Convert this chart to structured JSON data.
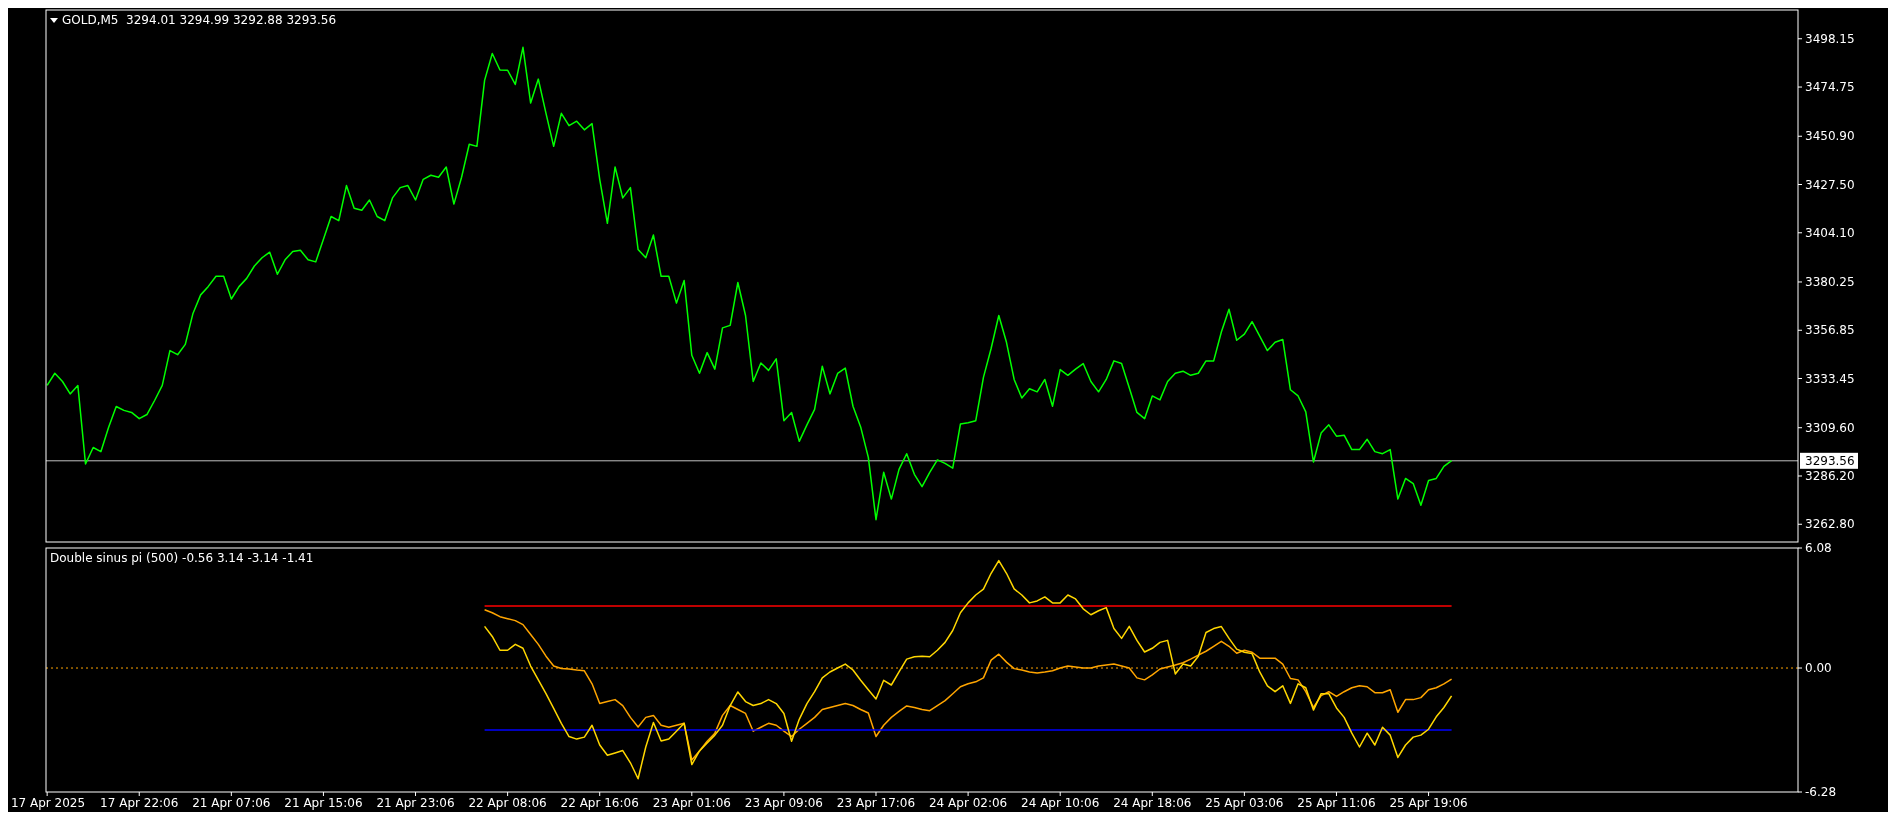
{
  "chart_data": [
    {
      "type": "line",
      "title": "GOLD,M5  3294.01 3294.99 3292.88 3293.56",
      "color": "#00ff00",
      "ylim": [
        3254.2,
        3512.1
      ],
      "categories": [
        null,
        null,
        null,
        null,
        null,
        null,
        null,
        null,
        null,
        null,
        null,
        null,
        null,
        null,
        null,
        null,
        null,
        null,
        null,
        null,
        null,
        null,
        null,
        null,
        null,
        null,
        null,
        null,
        null,
        null,
        null,
        null,
        null,
        null,
        null,
        null,
        null,
        null,
        null,
        null,
        null,
        null,
        null,
        null,
        null,
        null,
        null,
        null,
        null,
        null,
        null,
        null,
        null,
        null,
        null,
        null,
        null,
        null,
        null,
        null,
        null,
        null,
        null,
        null,
        null,
        null,
        null,
        null,
        null,
        null,
        null,
        null,
        null,
        null,
        null,
        null,
        null,
        null,
        null,
        null,
        null,
        null,
        null,
        null,
        null,
        null,
        null,
        null,
        null,
        null,
        null,
        null,
        null,
        null,
        null,
        null,
        null,
        null,
        null,
        null,
        null,
        null,
        null,
        null,
        null,
        null,
        null,
        null,
        null,
        null,
        null,
        null,
        null,
        null,
        null,
        null,
        null,
        null,
        null,
        null,
        null,
        null,
        null,
        null,
        null,
        null,
        null,
        null,
        null,
        null,
        null,
        null,
        null,
        null,
        null,
        null,
        null,
        null,
        null,
        null,
        null,
        null,
        null,
        null,
        null,
        null,
        null,
        null,
        null,
        null,
        null,
        null,
        null,
        null,
        null,
        null,
        null,
        null,
        null,
        null,
        null,
        null,
        null,
        null,
        null,
        null,
        null,
        null,
        null,
        null,
        null,
        null,
        null,
        null,
        null,
        null,
        null,
        null,
        null,
        null,
        null,
        null,
        null,
        null
      ],
      "yticks": [
        {
          "value": 3498.15,
          "label": "3498.15"
        },
        {
          "value": 3474.75,
          "label": "3474.75"
        },
        {
          "value": 3450.9,
          "label": "3450.90"
        },
        {
          "value": 3427.5,
          "label": "3427.50"
        },
        {
          "value": 3404.1,
          "label": "3404.10"
        },
        {
          "value": 3380.25,
          "label": "3380.25"
        },
        {
          "value": 3356.85,
          "label": "3356.85"
        },
        {
          "value": 3333.45,
          "label": "3333.45"
        },
        {
          "value": 3309.6,
          "label": "3309.60"
        },
        {
          "value": 3286.2,
          "label": "3286.20"
        },
        {
          "value": 3262.8,
          "label": "3262.80"
        }
      ],
      "ref_lines": [
        {
          "axis": "y",
          "value": 3293.56,
          "label": "3293.56",
          "color": "#c0c0c0"
        }
      ],
      "values": [
        3330.1,
        3336,
        3332,
        3326,
        3330.1,
        3292,
        3300,
        3298,
        3309.7,
        3319.9,
        3318,
        3317,
        3314,
        3316,
        3322.8,
        3330.1,
        3347,
        3345,
        3350,
        3365,
        3374,
        3378.1,
        3383,
        3383,
        3372,
        3378,
        3382,
        3388,
        3392,
        3394.7,
        3384,
        3391,
        3395,
        3395.6,
        3391,
        3390,
        3401,
        3412,
        3410,
        3427,
        3416,
        3415,
        3420,
        3412,
        3410,
        3421,
        3426,
        3427,
        3420,
        3430,
        3432,
        3431,
        3436,
        3418,
        3431,
        3447,
        3446,
        3478,
        3491,
        3483,
        3482.9,
        3476,
        3494,
        3467,
        3478.6,
        3462,
        3446,
        3462,
        3456,
        3458.2,
        3454,
        3457,
        3430,
        3408.7,
        3436,
        3421,
        3426,
        3396,
        3392,
        3403,
        3383,
        3383,
        3370,
        3381,
        3344.7,
        3336,
        3346,
        3338,
        3358,
        3359.2,
        3380,
        3364,
        3332,
        3341,
        3337.4,
        3343,
        3313,
        3317,
        3303,
        3311,
        3318.5,
        3339.4,
        3326,
        3335.9,
        3338.5,
        3320,
        3310,
        3295.2,
        3265,
        3288,
        3275,
        3289.4,
        3297,
        3287,
        3281,
        3288,
        3294,
        3292.3,
        3290,
        3311.4,
        3312,
        3313,
        3334,
        3348,
        3364,
        3351,
        3333,
        3324,
        3328.5,
        3327,
        3333,
        3320,
        3337.8,
        3335,
        3338,
        3340.7,
        3332,
        3327,
        3333,
        3342,
        3340.7,
        3329,
        3317,
        3314,
        3325,
        3323.1,
        3332,
        3336,
        3337,
        3335,
        3336,
        3342,
        3342,
        3356,
        3367,
        3352,
        3355,
        3361,
        3354,
        3347,
        3351,
        3352.4,
        3328,
        3325,
        3317.3,
        3293,
        3307,
        3311,
        3305.5,
        3306,
        3299,
        3299,
        3304,
        3298,
        3297,
        3299,
        3275,
        3285,
        3282.5,
        3272,
        3284,
        3285,
        3290.9,
        3293.6
      ]
    },
    {
      "type": "line",
      "title": "Double sinus pi (500) -0.56 3.14 -3.14 -1.41",
      "ylim": [
        -6.28,
        6.08
      ],
      "categories": [
        "17 Apr 2025",
        null,
        null,
        null,
        null,
        null,
        null,
        null,
        null,
        null,
        null,
        null,
        "17 Apr 22:06",
        null,
        null,
        null,
        null,
        null,
        null,
        null,
        null,
        null,
        null,
        null,
        "21 Apr 07:06",
        null,
        null,
        null,
        null,
        null,
        null,
        null,
        null,
        null,
        null,
        null,
        "21 Apr 15:06",
        null,
        null,
        null,
        null,
        null,
        null,
        null,
        null,
        null,
        null,
        null,
        "21 Apr 23:06",
        null,
        null,
        null,
        null,
        null,
        null,
        null,
        null,
        null,
        null,
        null,
        "22 Apr 08:06",
        null,
        null,
        null,
        null,
        null,
        null,
        null,
        null,
        null,
        null,
        null,
        "22 Apr 16:06",
        null,
        null,
        null,
        null,
        null,
        null,
        null,
        null,
        null,
        null,
        null,
        "23 Apr 01:06",
        null,
        null,
        null,
        null,
        null,
        null,
        null,
        null,
        null,
        null,
        null,
        "23 Apr 09:06",
        null,
        null,
        null,
        null,
        null,
        null,
        null,
        null,
        null,
        null,
        null,
        "23 Apr 17:06",
        null,
        null,
        null,
        null,
        null,
        null,
        null,
        null,
        null,
        null,
        null,
        "24 Apr 02:06",
        null,
        null,
        null,
        null,
        null,
        null,
        null,
        null,
        null,
        null,
        null,
        "24 Apr 10:06",
        null,
        null,
        null,
        null,
        null,
        null,
        null,
        null,
        null,
        null,
        null,
        "24 Apr 18:06",
        null,
        null,
        null,
        null,
        null,
        null,
        null,
        null,
        null,
        null,
        null,
        "25 Apr 03:06",
        null,
        null,
        null,
        null,
        null,
        null,
        null,
        null,
        null,
        null,
        null,
        "25 Apr 11:06",
        null,
        null,
        null,
        null,
        null,
        null,
        null,
        null,
        null,
        null,
        null,
        "25 Apr 19:06",
        null,
        null,
        null
      ],
      "yticks": [
        6.08,
        {
          "value": 0,
          "label": "0.00"
        },
        -6.28
      ],
      "ref_lines": [
        {
          "axis": "y",
          "value": 0,
          "color": "#ffa500",
          "line_style": "dotted"
        }
      ],
      "series": [
        {
          "color": "#ffa500",
          "values": [
            null,
            null,
            null,
            null,
            null,
            null,
            null,
            null,
            null,
            null,
            null,
            null,
            null,
            null,
            null,
            null,
            null,
            null,
            null,
            null,
            null,
            null,
            null,
            null,
            null,
            null,
            null,
            null,
            null,
            null,
            null,
            null,
            null,
            null,
            null,
            null,
            null,
            null,
            null,
            null,
            null,
            null,
            null,
            null,
            null,
            null,
            null,
            null,
            null,
            null,
            null,
            null,
            null,
            null,
            null,
            null,
            null,
            2.95,
            2.8,
            2.6,
            2.5,
            2.4,
            2.2,
            1.7,
            1.2,
            0.6,
            0.1,
            -0.02,
            -0.05,
            -0.1,
            -0.14,
            -0.8,
            -1.8,
            -1.7,
            -1.6,
            -1.9,
            -2.5,
            -2.99,
            -2.5,
            -2.4,
            -2.9,
            -3.0,
            -2.9,
            -2.8,
            -4.66,
            -4.2,
            -3.71,
            -3.3,
            -2.4,
            -1.9,
            -2.1,
            -2.3,
            -3.2,
            -3.0,
            -2.8,
            -2.9,
            -3.2,
            -3.47,
            -3.1,
            -2.8,
            -2.5,
            -2.1,
            -2.0,
            -1.9,
            -1.8,
            -1.9,
            -2.1,
            -2.28,
            -3.47,
            -2.9,
            -2.5,
            -2.2,
            -1.92,
            -2.0,
            -2.1,
            -2.16,
            -1.9,
            -1.65,
            -1.3,
            -0.95,
            -0.8,
            -0.7,
            -0.5,
            0.4,
            0.7,
            0.3,
            -0.03,
            -0.1,
            -0.2,
            -0.25,
            -0.2,
            -0.14,
            0,
            0.1,
            0.05,
            0,
            0,
            0.1,
            0.15,
            0.2,
            0.1,
            0,
            -0.5,
            -0.6,
            -0.35,
            -0.05,
            0.05,
            0.15,
            0.27,
            0.45,
            0.65,
            0.85,
            1.1,
            1.35,
            1.1,
            0.75,
            0.9,
            0.8,
            0.5,
            0.5,
            0.5,
            0.2,
            -0.53,
            -0.6,
            -1.2,
            -2.0,
            -1.4,
            -1.2,
            -1.44,
            -1.2,
            -1.0,
            -0.9,
            -0.95,
            -1.25,
            -1.25,
            -1.1,
            -2.24,
            -1.6,
            -1.6,
            -1.5,
            -1.1,
            -1.0,
            -0.8,
            -0.56
          ]
        },
        {
          "color": "#ff0000",
          "values": [
            null,
            null,
            null,
            null,
            null,
            null,
            null,
            null,
            null,
            null,
            null,
            null,
            null,
            null,
            null,
            null,
            null,
            null,
            null,
            null,
            null,
            null,
            null,
            null,
            null,
            null,
            null,
            null,
            null,
            null,
            null,
            null,
            null,
            null,
            null,
            null,
            null,
            null,
            null,
            null,
            null,
            null,
            null,
            null,
            null,
            null,
            null,
            null,
            null,
            null,
            null,
            null,
            null,
            null,
            null,
            null,
            null,
            3.14,
            3.14,
            3.14,
            3.14,
            3.14,
            3.14,
            3.14,
            3.14,
            3.14,
            3.14,
            3.14,
            3.14,
            3.14,
            3.14,
            3.14,
            3.14,
            3.14,
            3.14,
            3.14,
            3.14,
            3.14,
            3.14,
            3.14,
            3.14,
            3.14,
            3.14,
            3.14,
            3.14,
            3.14,
            3.14,
            3.14,
            3.14,
            3.14,
            3.14,
            3.14,
            3.14,
            3.14,
            3.14,
            3.14,
            3.14,
            3.14,
            3.14,
            3.14,
            3.14,
            3.14,
            3.14,
            3.14,
            3.14,
            3.14,
            3.14,
            3.14,
            3.14,
            3.14,
            3.14,
            3.14,
            3.14,
            3.14,
            3.14,
            3.14,
            3.14,
            3.14,
            3.14,
            3.14,
            3.14,
            3.14,
            3.14,
            3.14,
            3.14,
            3.14,
            3.14,
            3.14,
            3.14,
            3.14,
            3.14,
            3.14,
            3.14,
            3.14,
            3.14,
            3.14,
            3.14,
            3.14,
            3.14,
            3.14,
            3.14,
            3.14,
            3.14,
            3.14,
            3.14,
            3.14,
            3.14,
            3.14,
            3.14,
            3.14,
            3.14,
            3.14,
            3.14,
            3.14,
            3.14,
            3.14,
            3.14,
            3.14,
            3.14,
            3.14,
            3.14,
            3.14,
            3.14,
            3.14,
            3.14,
            3.14,
            3.14,
            3.14,
            3.14,
            3.14,
            3.14,
            3.14,
            3.14,
            3.14,
            3.14,
            3.14,
            3.14,
            3.14,
            3.14,
            3.14,
            3.14,
            3.14,
            3.14,
            3.14
          ]
        },
        {
          "color": "#0000ff",
          "values": [
            null,
            null,
            null,
            null,
            null,
            null,
            null,
            null,
            null,
            null,
            null,
            null,
            null,
            null,
            null,
            null,
            null,
            null,
            null,
            null,
            null,
            null,
            null,
            null,
            null,
            null,
            null,
            null,
            null,
            null,
            null,
            null,
            null,
            null,
            null,
            null,
            null,
            null,
            null,
            null,
            null,
            null,
            null,
            null,
            null,
            null,
            null,
            null,
            null,
            null,
            null,
            null,
            null,
            null,
            null,
            null,
            null,
            -3.14,
            -3.14,
            -3.14,
            -3.14,
            -3.14,
            -3.14,
            -3.14,
            -3.14,
            -3.14,
            -3.14,
            -3.14,
            -3.14,
            -3.14,
            -3.14,
            -3.14,
            -3.14,
            -3.14,
            -3.14,
            -3.14,
            -3.14,
            -3.14,
            -3.14,
            -3.14,
            -3.14,
            -3.14,
            -3.14,
            -3.14,
            -3.14,
            -3.14,
            -3.14,
            -3.14,
            -3.14,
            -3.14,
            -3.14,
            -3.14,
            -3.14,
            -3.14,
            -3.14,
            -3.14,
            -3.14,
            -3.14,
            -3.14,
            -3.14,
            -3.14,
            -3.14,
            -3.14,
            -3.14,
            -3.14,
            -3.14,
            -3.14,
            -3.14,
            -3.14,
            -3.14,
            -3.14,
            -3.14,
            -3.14,
            -3.14,
            -3.14,
            -3.14,
            -3.14,
            -3.14,
            -3.14,
            -3.14,
            -3.14,
            -3.14,
            -3.14,
            -3.14,
            -3.14,
            -3.14,
            -3.14,
            -3.14,
            -3.14,
            -3.14,
            -3.14,
            -3.14,
            -3.14,
            -3.14,
            -3.14,
            -3.14,
            -3.14,
            -3.14,
            -3.14,
            -3.14,
            -3.14,
            -3.14,
            -3.14,
            -3.14,
            -3.14,
            -3.14,
            -3.14,
            -3.14,
            -3.14,
            -3.14,
            -3.14,
            -3.14,
            -3.14,
            -3.14,
            -3.14,
            -3.14,
            -3.14,
            -3.14,
            -3.14,
            -3.14,
            -3.14,
            -3.14,
            -3.14,
            -3.14,
            -3.14,
            -3.14,
            -3.14,
            -3.14,
            -3.14,
            -3.14,
            -3.14,
            -3.14,
            -3.14,
            -3.14,
            -3.14,
            -3.14,
            -3.14,
            -3.14,
            -3.14,
            -3.14,
            -3.14,
            -3.14,
            -3.14,
            -3.14
          ]
        },
        {
          "color": "#ffd700",
          "values": [
            null,
            null,
            null,
            null,
            null,
            null,
            null,
            null,
            null,
            null,
            null,
            null,
            null,
            null,
            null,
            null,
            null,
            null,
            null,
            null,
            null,
            null,
            null,
            null,
            null,
            null,
            null,
            null,
            null,
            null,
            null,
            null,
            null,
            null,
            null,
            null,
            null,
            null,
            null,
            null,
            null,
            null,
            null,
            null,
            null,
            null,
            null,
            null,
            null,
            null,
            null,
            null,
            null,
            null,
            null,
            null,
            null,
            2.11,
            1.6,
            0.9,
            0.9,
            1.2,
            1.0,
            0.1,
            -0.6,
            -1.3,
            -2.04,
            -2.8,
            -3.47,
            -3.6,
            -3.5,
            -2.9,
            -3.9,
            -4.42,
            -4.3,
            -4.18,
            -4.8,
            -5.61,
            -4.0,
            -2.76,
            -3.7,
            -3.6,
            -3.2,
            -2.8,
            -4.89,
            -4.2,
            -3.8,
            -3.4,
            -2.9,
            -1.9,
            -1.21,
            -1.7,
            -1.9,
            -1.8,
            -1.6,
            -1.8,
            -2.3,
            -3.71,
            -2.6,
            -1.8,
            -1.2,
            -0.5,
            -0.2,
            0,
            0.2,
            -0.1,
            -0.62,
            -1.1,
            -1.57,
            -0.62,
            -0.86,
            -0.2,
            0.45,
            0.57,
            0.6,
            0.57,
            0.9,
            1.3,
            1.9,
            2.8,
            3.3,
            3.7,
            4.0,
            4.8,
            5.44,
            4.8,
            4.01,
            3.7,
            3.3,
            3.4,
            3.6,
            3.3,
            3.3,
            3.7,
            3.5,
            3.0,
            2.7,
            2.9,
            3.06,
            2.0,
            1.5,
            2.11,
            1.4,
            0.81,
            1.0,
            1.3,
            1.4,
            -0.3,
            0.2,
            0.1,
            0.6,
            1.8,
            2.0,
            2.1,
            1.5,
            0.96,
            0.8,
            0.73,
            -0.2,
            -0.9,
            -1.2,
            -0.9,
            -1.79,
            -0.8,
            -1.0,
            -2.13,
            -1.3,
            -1.3,
            -2.02,
            -2.5,
            -3.3,
            -4.0,
            -3.3,
            -3.9,
            -3.0,
            -3.4,
            -4.53,
            -3.9,
            -3.5,
            -3.4,
            -3.1,
            -2.47,
            -2.0,
            -1.41
          ]
        }
      ]
    }
  ]
}
